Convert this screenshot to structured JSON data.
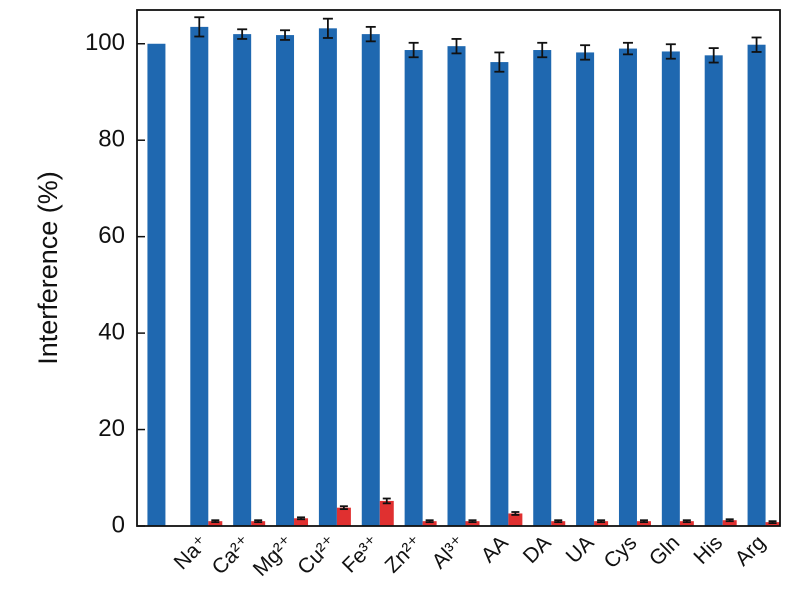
{
  "chart_data": {
    "type": "bar",
    "y_label": "Interference (%)",
    "categories": [
      null,
      "Na⁺",
      "Ca²⁺",
      "Mg²⁺",
      "Cu²⁺",
      "Fe³⁺",
      "Zn²⁺",
      "Al³⁺",
      "AA",
      "DA",
      "UA",
      "Cys",
      "Gln",
      "His",
      "Arg"
    ],
    "series": [
      {
        "color": "#1f68b0",
        "values": [
          100,
          103.5,
          102,
          101.8,
          103.2,
          102,
          98.7,
          99.5,
          96.2,
          98.7,
          98.2,
          99,
          98.4,
          97.6,
          99.8
        ],
        "errors": [
          null,
          2,
          1,
          1,
          2,
          1.5,
          1.5,
          1.5,
          2,
          1.5,
          1.5,
          1.2,
          1.5,
          1.5,
          1.5
        ]
      },
      {
        "color": "#e03030",
        "values": [
          null,
          1,
          1,
          1.6,
          3.8,
          5.2,
          1,
          1,
          2.6,
          1,
          1,
          1,
          1,
          1.2,
          0.8
        ],
        "errors": [
          null,
          0.2,
          0.2,
          0.2,
          0.3,
          0.5,
          0.2,
          0.2,
          0.3,
          0.2,
          0.2,
          0.2,
          0.2,
          0.2,
          0.2
        ]
      }
    ],
    "ylim": [
      0,
      107
    ],
    "yticks": [
      0,
      20,
      40,
      60,
      80,
      100
    ]
  }
}
